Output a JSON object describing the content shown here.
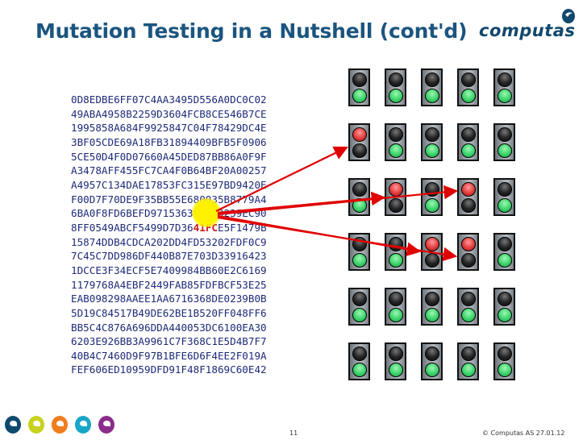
{
  "title": "Mutation Testing in a Nutshell (cont'd)",
  "logo": {
    "text": "computas"
  },
  "hex_lines": [
    "0D8EDBE6FF07C4AA3495D556A0DC0C02",
    "49ABA4958B2259D3604FCB8CE546B7CE",
    "1995858A684F9925847C04F78429DC4E",
    "3BF05CDE69A18FB31894409BFB5F0906",
    "5CE50D4F0D07660A45DED87BB86A0F9F",
    "A3478AFF455FC7CA4F0B64BF20A00257",
    "A4957C134DAE17853FC315E97BD9420E",
    "F00D7F70DE9F35BB55E680035B8779A4",
    "6BA0F8FD6BEFD971536395A50239EC90",
    {
      "before": "8FF0549ABCF5499D7D36",
      "highlight": "41FC",
      "after": "E5F1479B"
    },
    "15874DDB4CDCA202DD4FD53202FDF0C9",
    "7C45C7DD986DF440B87E703D33916423",
    "1DCCE3F34ECF5E7409984BB60E2C6169",
    "1179768A4EBF2449FAB85FDFBCF53E25",
    "EAB098298AAEE1AA6716368DE0239B0B",
    "5D19C84517B49DE62BE1B520FF048FF6",
    "BB5C4C876A696DDA440053DC6100EA30",
    "6203E926BB3A9961C7F368C1E5D4B7F7",
    "40B4C7460D9F97B1BFE6D6F4EE2F019A",
    "FEF606ED10959DFD91F48F1869C60E42"
  ],
  "traffic_lights": [
    [
      "pass",
      "pass",
      "pass",
      "pass",
      "pass"
    ],
    [
      "fail",
      "pass",
      "pass",
      "pass",
      "pass"
    ],
    [
      "pass",
      "fail",
      "pass",
      "fail",
      "pass"
    ],
    [
      "pass",
      "pass",
      "fail",
      "fail",
      "pass"
    ],
    [
      "pass",
      "pass",
      "pass",
      "pass",
      "pass"
    ],
    [
      "pass",
      "pass",
      "pass",
      "pass",
      "pass"
    ]
  ],
  "colors": {
    "title": "#1b557f",
    "hex_text": "#1e2a78",
    "arrow": "#e00000",
    "highlight": "#fff200",
    "fail": "#e23b3b",
    "pass": "#3bd46a"
  },
  "footer": {
    "page_number": "11",
    "copyright": "© Computas AS 27.01.12",
    "logo_colors": [
      "#0f4a6e",
      "#c8d21e",
      "#f07d1e",
      "#19a5c8",
      "#8c2d8c"
    ]
  }
}
